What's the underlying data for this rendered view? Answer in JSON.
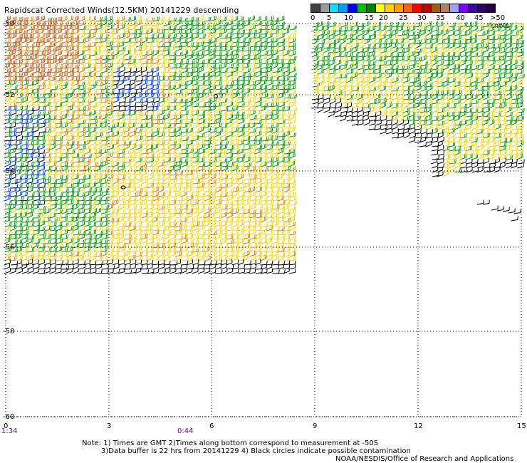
{
  "title": "Rapidscat Corrected Winds(12.5KM) 20141229 descending",
  "legend": {
    "labels": [
      "0",
      "5",
      "10",
      "15",
      "20",
      "25",
      "30",
      "35",
      "40",
      "45",
      ">50 knots"
    ],
    "colors": [
      "#404040",
      "#9a9a9a",
      "#00e0ff",
      "#00a0ff",
      "#0000ff",
      "#00c000",
      "#008000",
      "#ffff00",
      "#ffd000",
      "#ffa000",
      "#ff6000",
      "#ff0000",
      "#c00000",
      "#a06000",
      "#b08060",
      "#a0a0ff",
      "#8000ff",
      "#4000a0",
      "#300060",
      "#200040"
    ]
  },
  "axes": {
    "y_labels": [
      "-50",
      "-52",
      "-54",
      "-56",
      "-58",
      "-60"
    ],
    "x_labels": [
      "0",
      "3",
      "6",
      "9",
      "12",
      "15"
    ]
  },
  "times": {
    "left": "1:34",
    "mid": "0:44"
  },
  "notes": {
    "line1": "Note: 1) Times are GMT 2)Times along bottom correspond to measurement at -50S",
    "line2": "3)Data buffer is 22 hrs from 20141229 4) Black circles indicate possible contamination",
    "line3": "NOAA/NESDIS/Office of Research and Applications"
  },
  "colors": {
    "calm": "#000000",
    "light": "#0040ff",
    "moderate": "#00a000",
    "fresh": "#ffd800",
    "strong": "#e08000",
    "gale": "#c06020"
  }
}
